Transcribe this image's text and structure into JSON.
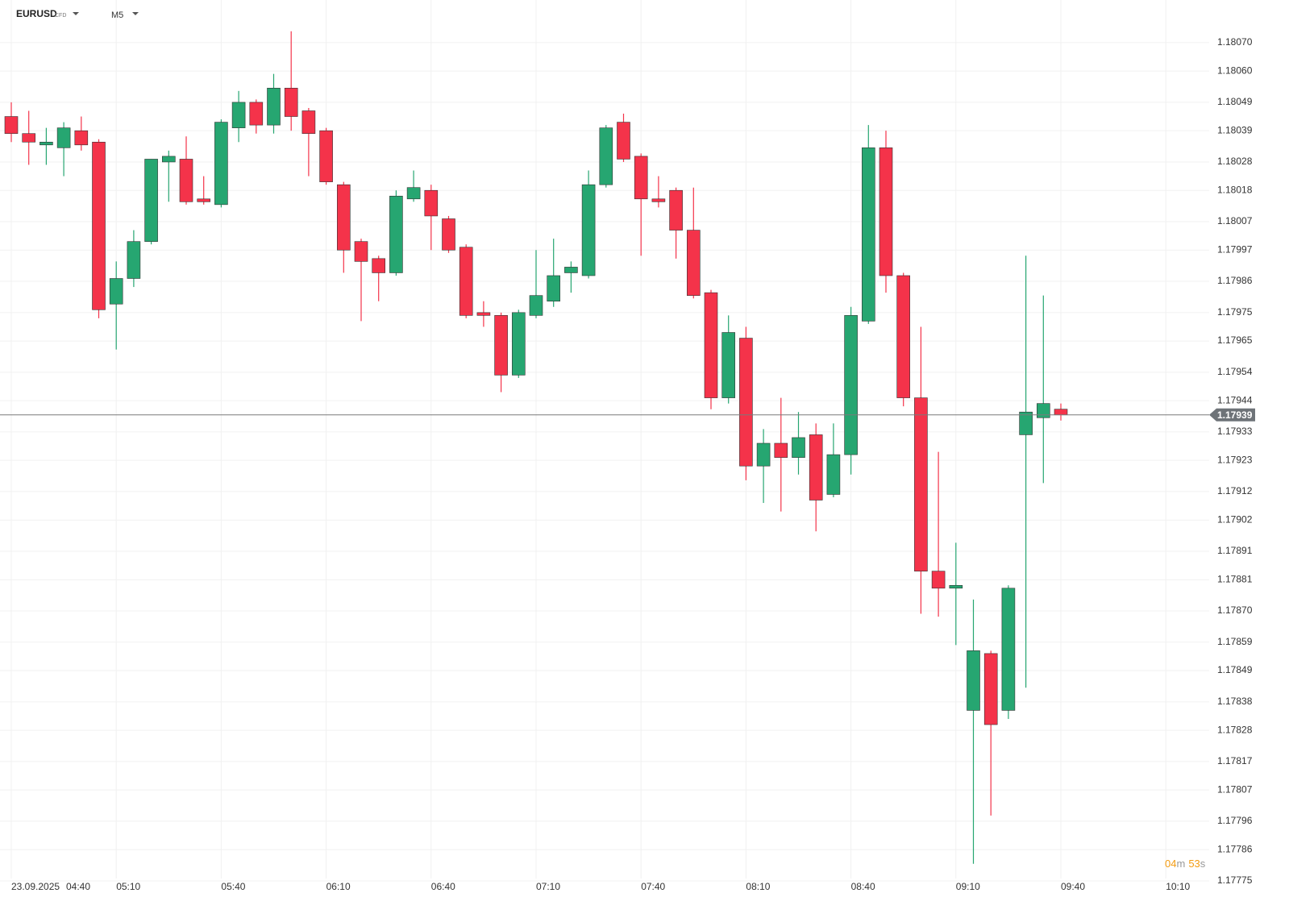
{
  "header": {
    "symbol": "EURUSD",
    "instrument_type": "CFD",
    "timeframe": "M5"
  },
  "countdown": {
    "minutes": "04",
    "minutes_unit": "m",
    "seconds": "53",
    "seconds_unit": "s"
  },
  "chart_data": {
    "type": "candlestick",
    "date": "23.09.2025",
    "categories": [
      "04:40",
      null,
      null,
      null,
      null,
      null,
      "05:10",
      null,
      null,
      null,
      null,
      null,
      "05:40",
      null,
      null,
      null,
      null,
      null,
      "06:10",
      null,
      null,
      null,
      null,
      null,
      "06:40",
      null,
      null,
      null,
      null,
      null,
      "07:10",
      null,
      null,
      null,
      null,
      null,
      "07:40",
      null,
      null,
      null,
      null,
      null,
      "08:10",
      null,
      null,
      null,
      null,
      null,
      "08:40",
      null,
      null,
      null,
      null,
      null,
      "09:10",
      null,
      null,
      null,
      null,
      null,
      "09:40",
      null,
      null,
      null,
      null,
      null,
      "10:10"
    ],
    "open": [
      1.18044,
      1.18038,
      1.18034,
      1.18033,
      1.18039,
      1.18035,
      1.17978,
      1.17987,
      1.18,
      1.18028,
      1.18029,
      1.18015,
      1.18013,
      1.1804,
      1.18049,
      1.18041,
      1.18054,
      1.18046,
      1.18039,
      1.1802,
      1.18,
      1.17994,
      1.17989,
      1.18015,
      1.18018,
      1.18008,
      1.17998,
      1.17975,
      1.17974,
      1.17953,
      1.17974,
      1.17979,
      1.17989,
      1.17988,
      1.1802,
      1.18042,
      1.1803,
      1.18015,
      1.18018,
      1.18004,
      1.17982,
      1.17945,
      1.17966,
      1.17921,
      1.17929,
      1.17924,
      1.17932,
      1.17911,
      1.17925,
      1.17972,
      1.18033,
      1.17988,
      1.17945,
      1.17884,
      1.17878,
      1.17835,
      1.17855,
      1.17835,
      1.17932,
      1.17938,
      1.17941,
      null,
      null,
      null,
      null,
      null,
      null
    ],
    "high": [
      1.18049,
      1.18046,
      1.1804,
      1.18042,
      1.18044,
      1.18036,
      1.17993,
      1.18004,
      1.18029,
      1.18032,
      1.18037,
      1.18023,
      1.18043,
      1.18053,
      1.1805,
      1.18059,
      1.18074,
      1.18047,
      1.1804,
      1.18021,
      1.18001,
      1.17995,
      1.18018,
      1.18025,
      1.1802,
      1.18009,
      1.17999,
      1.17979,
      1.17975,
      1.17976,
      1.17997,
      1.18001,
      1.17993,
      1.18025,
      1.18041,
      1.18045,
      1.18031,
      1.18023,
      1.18019,
      1.18019,
      1.17983,
      1.17974,
      1.1797,
      1.17934,
      1.17945,
      1.1794,
      1.17936,
      1.17936,
      1.17977,
      1.18041,
      1.18039,
      1.17989,
      1.1797,
      1.17926,
      1.17894,
      1.17874,
      1.17856,
      1.17879,
      1.17995,
      1.17981,
      1.17943,
      null,
      null,
      null,
      null,
      null,
      null
    ],
    "low": [
      1.18035,
      1.18027,
      1.18027,
      1.18023,
      1.18032,
      1.17973,
      1.17962,
      1.17984,
      1.17999,
      1.18014,
      1.18013,
      1.18013,
      1.18012,
      1.18035,
      1.18038,
      1.18038,
      1.18039,
      1.18023,
      1.1802,
      1.17989,
      1.17972,
      1.17979,
      1.17988,
      1.18014,
      1.17997,
      1.17996,
      1.17973,
      1.1797,
      1.17947,
      1.17952,
      1.17973,
      1.17977,
      1.17982,
      1.17987,
      1.18019,
      1.18028,
      1.17995,
      1.18012,
      1.17994,
      1.1798,
      1.17941,
      1.17943,
      1.17916,
      1.17908,
      1.17905,
      1.17918,
      1.17898,
      1.1791,
      1.17918,
      1.17971,
      1.17982,
      1.17942,
      1.17869,
      1.17868,
      1.17858,
      1.17781,
      1.17798,
      1.17832,
      1.17843,
      1.17915,
      1.17937,
      null,
      null,
      null,
      null,
      null,
      null
    ],
    "close": [
      1.18038,
      1.18035,
      1.18035,
      1.1804,
      1.18034,
      1.17976,
      1.17987,
      1.18,
      1.18029,
      1.1803,
      1.18014,
      1.18014,
      1.18042,
      1.18049,
      1.18041,
      1.18054,
      1.18044,
      1.18038,
      1.18021,
      1.17997,
      1.17993,
      1.17989,
      1.18016,
      1.18019,
      1.18009,
      1.17997,
      1.17974,
      1.17974,
      1.17953,
      1.17975,
      1.17981,
      1.17988,
      1.17991,
      1.1802,
      1.1804,
      1.18029,
      1.18015,
      1.18014,
      1.18004,
      1.17981,
      1.17945,
      1.17968,
      1.17921,
      1.17929,
      1.17924,
      1.17931,
      1.17909,
      1.17925,
      1.17974,
      1.18033,
      1.17988,
      1.17945,
      1.17884,
      1.17878,
      1.17879,
      1.17856,
      1.1783,
      1.17878,
      1.1794,
      1.17943,
      1.17939,
      null,
      null,
      null,
      null,
      null,
      null
    ],
    "up_color": "#26a671",
    "down_color": "#f4334a",
    "last_price": 1.17939,
    "ylim": [
      1.17773,
      1.18085
    ],
    "yticks": [
      {
        "value": 1.1807,
        "label": "1.18070"
      },
      {
        "value": 1.1806,
        "label": "1.18060"
      },
      1.18049,
      1.18039,
      1.18028,
      1.18018,
      1.18007,
      1.17997,
      1.17986,
      1.17975,
      1.17965,
      1.17954,
      1.17944,
      1.17933,
      1.17923,
      1.17912,
      1.17902,
      1.17891,
      1.17881,
      {
        "value": 1.1787,
        "label": "1.17870"
      },
      1.17859,
      1.17849,
      1.17838,
      1.17828,
      1.17817,
      1.17807,
      1.17796,
      1.17786,
      1.17775
    ],
    "grid": true
  }
}
